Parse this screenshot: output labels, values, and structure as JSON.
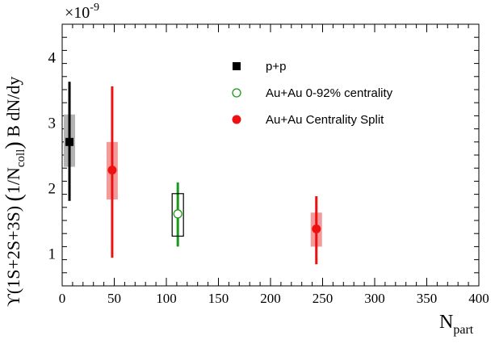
{
  "chart_data": {
    "type": "scatter",
    "title": "",
    "xlabel": "N",
    "xlabel_sub": "part",
    "ylabel_parts": [
      "ϒ(1S+2S+3S) ",
      "(",
      "1/N",
      "coll",
      ")",
      " B dN/dy"
    ],
    "y_exponent_label": "×10",
    "y_exponent_power": "-9",
    "xlim": [
      0,
      400
    ],
    "ylim": [
      0.5,
      4.5
    ],
    "x_ticks": [
      0,
      50,
      100,
      150,
      200,
      250,
      300,
      350,
      400
    ],
    "y_ticks": [
      1,
      2,
      3,
      4
    ],
    "grid": false,
    "legend_position": "top-right",
    "series": [
      {
        "name": "p+p",
        "color": "#000000",
        "marker": "square",
        "points": [
          {
            "x": 7,
            "y": 2.7,
            "stat_low": 1.8,
            "stat_high": 3.62,
            "sys_low": 2.32,
            "sys_high": 3.12,
            "sys_style": "shaded",
            "sys_color": "#b3b3b3"
          }
        ]
      },
      {
        "name": "Au+Au 0-92% centrality",
        "color": "#1a9a1a",
        "marker": "open-circle",
        "points": [
          {
            "x": 111,
            "y": 1.6,
            "stat_low": 1.1,
            "stat_high": 2.08,
            "sys_low": 1.26,
            "sys_high": 1.91,
            "sys_style": "box",
            "sys_color": "#000000"
          }
        ]
      },
      {
        "name": "Au+Au Centrality Split",
        "color": "#ee1111",
        "marker": "filled-circle",
        "points": [
          {
            "x": 48,
            "y": 2.27,
            "stat_low": 0.93,
            "stat_high": 3.55,
            "sys_low": 1.82,
            "sys_high": 2.7,
            "sys_style": "shaded",
            "sys_color": "#f39a9a"
          },
          {
            "x": 244,
            "y": 1.37,
            "stat_low": 0.83,
            "stat_high": 1.87,
            "sys_low": 1.1,
            "sys_high": 1.62,
            "sys_style": "shaded",
            "sys_color": "#f39a9a"
          }
        ]
      }
    ]
  }
}
